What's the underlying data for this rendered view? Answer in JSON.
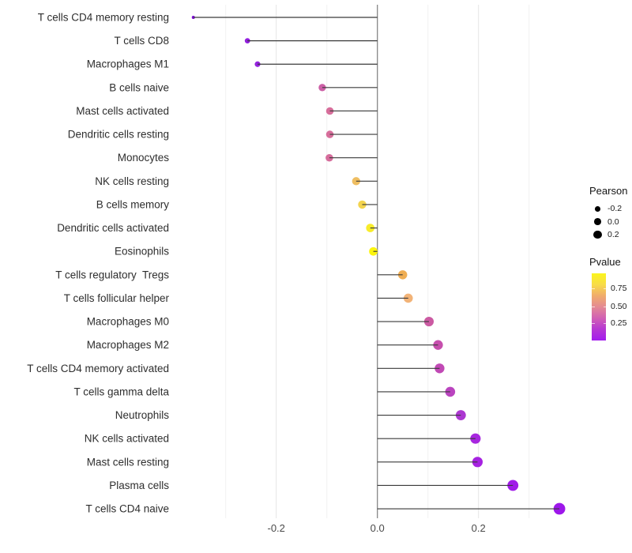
{
  "chart_data": {
    "type": "lollipop",
    "title": "",
    "xlabel": "",
    "ylabel": "",
    "background": "#FFFFFF",
    "x_axis": {
      "ticks": [
        "-0.2",
        "0.0",
        "0.2"
      ],
      "tick_values": [
        -0.2,
        0.0,
        0.2
      ],
      "minor_tick_values": [
        -0.3,
        -0.1,
        0.1,
        0.3
      ],
      "range": [
        -0.4,
        0.396
      ]
    },
    "rows": [
      {
        "label": "T cells CD4 memory resting",
        "pearson": -0.364,
        "pvalue_approx": 0.03,
        "color": "#7F0BD8"
      },
      {
        "label": "T cells CD8",
        "pearson": -0.257,
        "pvalue_approx": 0.1,
        "color": "#921FDE"
      },
      {
        "label": "Macrophages M1",
        "pearson": -0.237,
        "pvalue_approx": 0.1,
        "color": "#9423DD"
      },
      {
        "label": "B cells naive",
        "pearson": -0.109,
        "pvalue_approx": 0.28,
        "color": "#CC5FA6"
      },
      {
        "label": "Mast cells activated",
        "pearson": -0.094,
        "pvalue_approx": 0.35,
        "color": "#D76E9B"
      },
      {
        "label": "Dendritic cells resting",
        "pearson": -0.094,
        "pvalue_approx": 0.35,
        "color": "#D76E9B"
      },
      {
        "label": "Monocytes",
        "pearson": -0.095,
        "pvalue_approx": 0.35,
        "color": "#D66D9C"
      },
      {
        "label": "NK cells resting",
        "pearson": -0.042,
        "pvalue_approx": 0.68,
        "color": "#EFBE62"
      },
      {
        "label": "B cells memory",
        "pearson": -0.03,
        "pvalue_approx": 0.78,
        "color": "#F3D44E"
      },
      {
        "label": "Dendritic cells activated",
        "pearson": -0.014,
        "pvalue_approx": 0.88,
        "color": "#F8EC2B"
      },
      {
        "label": "Eosinophils",
        "pearson": -0.008,
        "pvalue_approx": 0.95,
        "color": "#FCF50D"
      },
      {
        "label": "T cells regulatory  Tregs",
        "pearson": 0.05,
        "pvalue_approx": 0.62,
        "color": "#EFAE54"
      },
      {
        "label": "T cells follicular helper",
        "pearson": 0.061,
        "pvalue_approx": 0.55,
        "color": "#F2B377"
      },
      {
        "label": "Macrophages M0",
        "pearson": 0.102,
        "pvalue_approx": 0.26,
        "color": "#CB5AA2"
      },
      {
        "label": "Macrophages M2",
        "pearson": 0.12,
        "pvalue_approx": 0.22,
        "color": "#C64FAD"
      },
      {
        "label": "T cells CD4 memory activated",
        "pearson": 0.123,
        "pvalue_approx": 0.2,
        "color": "#C149B5"
      },
      {
        "label": "T cells gamma delta",
        "pearson": 0.144,
        "pvalue_approx": 0.16,
        "color": "#BA44BF"
      },
      {
        "label": "Neutrophils",
        "pearson": 0.165,
        "pvalue_approx": 0.11,
        "color": "#AC38D1"
      },
      {
        "label": "NK cells activated",
        "pearson": 0.194,
        "pvalue_approx": 0.07,
        "color": "#A726DF"
      },
      {
        "label": "Mast cells resting",
        "pearson": 0.198,
        "pvalue_approx": 0.07,
        "color": "#A622E1"
      },
      {
        "label": "Plasma cells",
        "pearson": 0.268,
        "pvalue_approx": 0.04,
        "color": "#A01BE8"
      },
      {
        "label": "T cells CD4 naive",
        "pearson": 0.36,
        "pvalue_approx": 0.03,
        "color": "#9D17EA"
      }
    ],
    "legend_size": {
      "title": "Pearson",
      "dot_color": "#000000",
      "items": [
        {
          "label": "-0.2",
          "value": -0.2
        },
        {
          "label": "0.0",
          "value": 0.0
        },
        {
          "label": "0.2",
          "value": 0.2
        }
      ]
    },
    "legend_color": {
      "title": "Pvalue",
      "ticks": [
        "0.75",
        "0.50",
        "0.25"
      ],
      "gradient": [
        "#FBF51C",
        "#F8DC49",
        "#F0AC6C",
        "#E48A94",
        "#D160B4",
        "#B637D3",
        "#A31CEE"
      ]
    },
    "style_colors": {
      "stem": "#3A3A3A",
      "zero_line": "#808080",
      "gridline_major": "#E4E4E4",
      "gridline_minor": "#F2F2F2"
    }
  }
}
